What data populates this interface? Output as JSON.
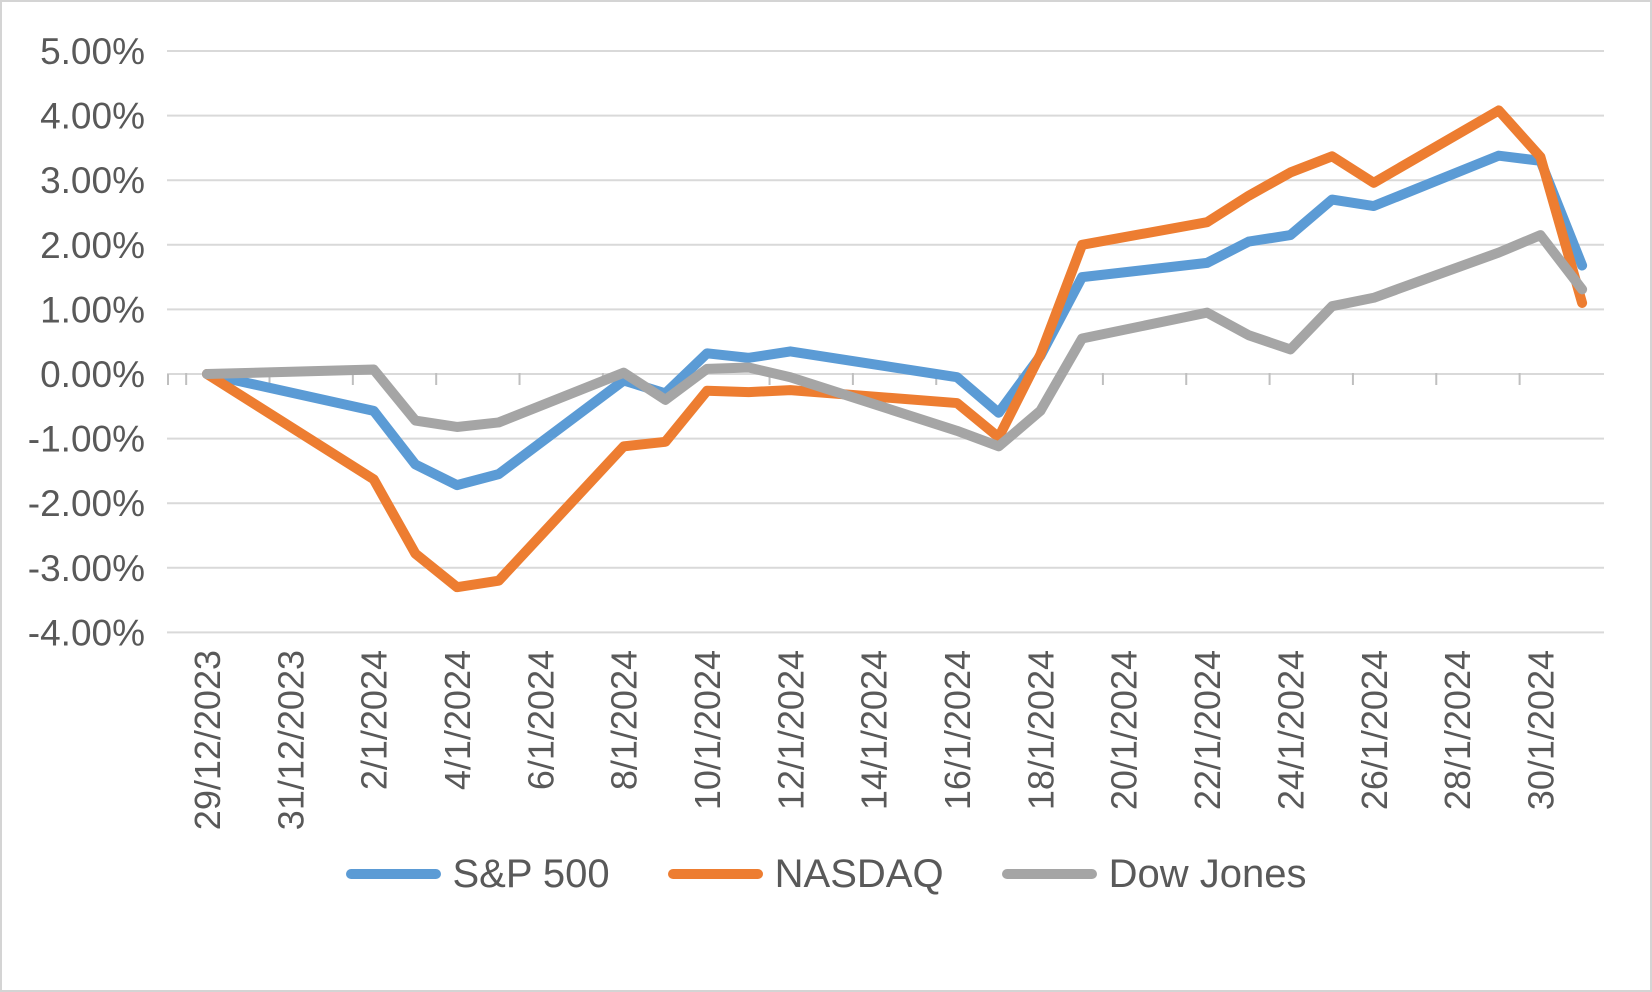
{
  "chart_data": {
    "type": "line",
    "title": "",
    "xlabel": "",
    "ylabel": "",
    "grid": true,
    "legend_position": "bottom",
    "ylim": [
      -4,
      5
    ],
    "y_tick_labels": [
      "5.00%",
      "4.00%",
      "3.00%",
      "2.00%",
      "1.00%",
      "0.00%",
      "-1.00%",
      "-2.00%",
      "-3.00%",
      "-4.00%"
    ],
    "y_tick_values": [
      5,
      4,
      3,
      2,
      1,
      0,
      -1,
      -2,
      -3,
      -4
    ],
    "x_tick_labels": [
      "29/12/2023",
      "31/12/2023",
      "2/1/2024",
      "4/1/2024",
      "6/1/2024",
      "8/1/2024",
      "10/1/2024",
      "12/1/2024",
      "14/1/2024",
      "16/1/2024",
      "18/1/2024",
      "20/1/2024",
      "22/1/2024",
      "24/1/2024",
      "26/1/2024",
      "28/1/2024",
      "30/1/2024"
    ],
    "x_tick_day_offsets": [
      0,
      2,
      4,
      6,
      8,
      10,
      12,
      14,
      16,
      18,
      20,
      22,
      24,
      26,
      28,
      30,
      32
    ],
    "point_dates": [
      "29/12/2023",
      "2/1/2024",
      "3/1/2024",
      "4/1/2024",
      "5/1/2024",
      "8/1/2024",
      "9/1/2024",
      "10/1/2024",
      "11/1/2024",
      "12/1/2024",
      "16/1/2024",
      "17/1/2024",
      "18/1/2024",
      "19/1/2024",
      "22/1/2024",
      "23/1/2024",
      "24/1/2024",
      "25/1/2024",
      "26/1/2024",
      "29/1/2024",
      "30/1/2024",
      "31/1/2024"
    ],
    "point_day_offsets": [
      0,
      4,
      5,
      6,
      7,
      10,
      11,
      12,
      13,
      14,
      18,
      19,
      20,
      21,
      24,
      25,
      26,
      27,
      28,
      31,
      32,
      33
    ],
    "series": [
      {
        "name": "S&P 500",
        "color": "#5B9BD5",
        "values": [
          0.0,
          -0.57,
          -1.4,
          -1.72,
          -1.55,
          -0.1,
          -0.3,
          0.32,
          0.25,
          0.35,
          -0.05,
          -0.6,
          0.28,
          1.5,
          1.72,
          2.05,
          2.15,
          2.7,
          2.6,
          3.38,
          3.3,
          1.68
        ]
      },
      {
        "name": "NASDAQ",
        "color": "#ED7D31",
        "values": [
          0.0,
          -1.63,
          -2.78,
          -3.3,
          -3.2,
          -1.12,
          -1.05,
          -0.26,
          -0.28,
          -0.25,
          -0.45,
          -0.98,
          0.3,
          2.0,
          2.35,
          2.76,
          3.12,
          3.37,
          2.96,
          4.08,
          3.36,
          1.1
        ]
      },
      {
        "name": "Dow Jones",
        "color": "#A5A5A5",
        "values": [
          0.0,
          0.07,
          -0.72,
          -0.82,
          -0.75,
          0.02,
          -0.4,
          0.08,
          0.1,
          -0.05,
          -0.88,
          -1.12,
          -0.57,
          0.55,
          0.95,
          0.6,
          0.38,
          1.05,
          1.18,
          1.88,
          2.15,
          1.31
        ]
      }
    ],
    "colors": {
      "gridline": "#D9D9D9",
      "axis_line": "#D9D9D9",
      "tick_mark": "#BFBFBF",
      "axis_text": "#595959",
      "frame_border": "#D4D4D4",
      "background": "#FFFFFF"
    }
  }
}
